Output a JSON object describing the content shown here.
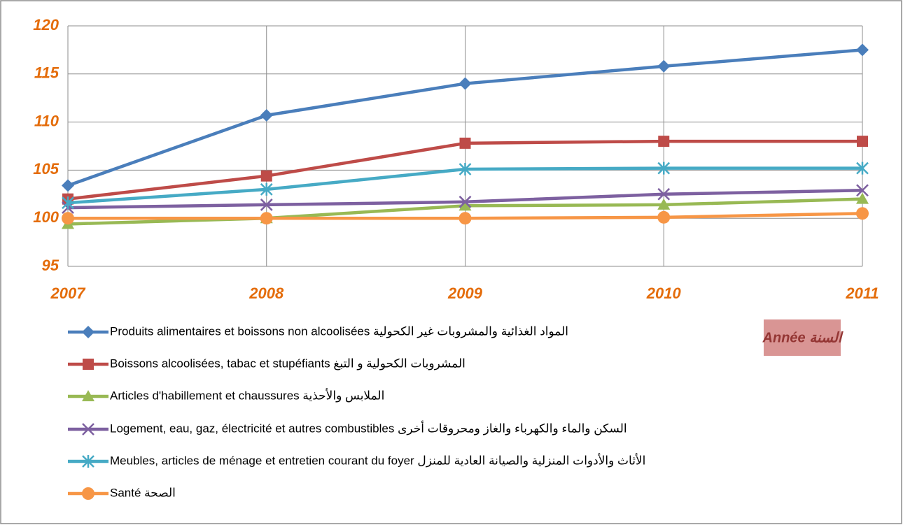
{
  "chart_data": {
    "type": "line",
    "categories": [
      "2007",
      "2008",
      "2009",
      "2010",
      "2011"
    ],
    "x_label": "Année السنة",
    "ylim": [
      95,
      120
    ],
    "yticks": [
      95,
      100,
      105,
      110,
      115,
      120
    ],
    "grid": true,
    "series": [
      {
        "name": "Produits alimentaires et boissons non alcoolisées المواد الغذائية والمشروبات غير الكحولية",
        "color": "#4a7ebb",
        "marker": "diamond",
        "values": [
          103.4,
          110.7,
          114.0,
          115.8,
          117.5
        ]
      },
      {
        "name": "Boissons alcoolisées, tabac et stupéfiants المشروبات الكحولية و التبغ",
        "color": "#be4b48",
        "marker": "square",
        "values": [
          102.0,
          104.4,
          107.8,
          108.0,
          108.0
        ]
      },
      {
        "name": "Articles d'habillement et chaussures الملابس والأحذية",
        "color": "#98b954",
        "marker": "triangle",
        "values": [
          99.4,
          100.0,
          101.3,
          101.4,
          102.0
        ]
      },
      {
        "name": "Logement, eau, gaz, électricité et autres combustibles السكن والماء والكهرباء والغاز ومحروقات أخرى",
        "color": "#7d60a0",
        "marker": "x",
        "values": [
          101.1,
          101.4,
          101.7,
          102.5,
          102.9
        ]
      },
      {
        "name": "Meubles, articles de ménage et entretien courant du foyer  الأثاث والأدوات المنزلية والصيانة العادية للمنزل",
        "color": "#46aac5",
        "marker": "star",
        "values": [
          101.6,
          103.0,
          105.1,
          105.2,
          105.2
        ]
      },
      {
        "name": "Santé الصحة",
        "color": "#f79646",
        "marker": "circle",
        "values": [
          100.0,
          100.0,
          100.0,
          100.1,
          100.5
        ]
      }
    ]
  }
}
